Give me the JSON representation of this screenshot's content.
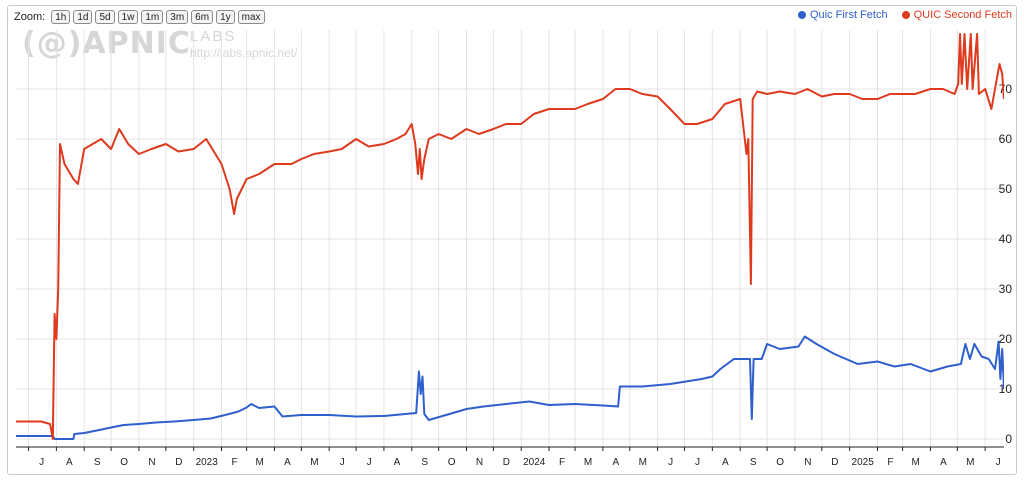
{
  "zoom": {
    "label": "Zoom:",
    "buttons": [
      "1h",
      "1d",
      "5d",
      "1w",
      "1m",
      "3m",
      "6m",
      "1y",
      "max"
    ]
  },
  "watermark": {
    "logo": "(@)APNIC",
    "labs": "LABS",
    "url": "http://labs.apnic.net/"
  },
  "colors": {
    "first_fetch": "#2f5fcc",
    "second_fetch": "#dd3a1e",
    "grid": "#e4e4e4",
    "axis": "#222222"
  },
  "chart_data": {
    "type": "line",
    "title": "",
    "xlabel": "",
    "ylabel": "",
    "ylim": [
      0,
      70
    ],
    "yticks": [
      0,
      10,
      20,
      30,
      40,
      50,
      60,
      70
    ],
    "y_axis_side": "right",
    "grid": true,
    "legend_position": "top-right",
    "x_range": [
      "2022-06-17",
      "2025-06-22"
    ],
    "x_tick_labels": [
      "J",
      "A",
      "S",
      "O",
      "N",
      "D",
      "2023",
      "F",
      "M",
      "A",
      "M",
      "J",
      "J",
      "A",
      "S",
      "O",
      "N",
      "D",
      "2024",
      "F",
      "M",
      "A",
      "M",
      "J",
      "J",
      "A",
      "S",
      "O",
      "N",
      "D",
      "2025",
      "F",
      "M",
      "A",
      "M",
      "J"
    ],
    "series": [
      {
        "name": "Quic First Fetch",
        "color": "#2f5fcc",
        "points": [
          [
            "2022-06-17",
            0.6
          ],
          [
            "2022-07-10",
            0.6
          ],
          [
            "2022-07-28",
            0.6
          ],
          [
            "2022-07-30",
            0
          ],
          [
            "2022-08-20",
            0
          ],
          [
            "2022-08-21",
            1
          ],
          [
            "2022-09-01",
            1.2
          ],
          [
            "2022-09-15",
            1.7
          ],
          [
            "2022-10-01",
            2.3
          ],
          [
            "2022-10-15",
            2.8
          ],
          [
            "2022-11-01",
            3
          ],
          [
            "2022-11-20",
            3.3
          ],
          [
            "2022-12-10",
            3.5
          ],
          [
            "2023-01-01",
            3.8
          ],
          [
            "2023-01-20",
            4.1
          ],
          [
            "2023-02-05",
            4.8
          ],
          [
            "2023-02-20",
            5.5
          ],
          [
            "2023-03-01",
            6.3
          ],
          [
            "2023-03-06",
            7
          ],
          [
            "2023-03-15",
            6.2
          ],
          [
            "2023-04-01",
            6.5
          ],
          [
            "2023-04-10",
            4.5
          ],
          [
            "2023-05-01",
            4.8
          ],
          [
            "2023-06-01",
            4.8
          ],
          [
            "2023-07-01",
            4.5
          ],
          [
            "2023-08-01",
            4.6
          ],
          [
            "2023-08-25",
            5
          ],
          [
            "2023-09-06",
            5.2
          ],
          [
            "2023-09-09",
            13.5
          ],
          [
            "2023-09-11",
            9
          ],
          [
            "2023-09-13",
            12.5
          ],
          [
            "2023-09-15",
            5
          ],
          [
            "2023-09-20",
            3.8
          ],
          [
            "2023-10-15",
            5.1
          ],
          [
            "2023-11-01",
            6
          ],
          [
            "2023-11-20",
            6.5
          ],
          [
            "2023-12-15",
            7
          ],
          [
            "2024-01-10",
            7.5
          ],
          [
            "2024-02-01",
            6.8
          ],
          [
            "2024-03-01",
            7
          ],
          [
            "2024-04-01",
            6.7
          ],
          [
            "2024-04-18",
            6.5
          ],
          [
            "2024-04-20",
            10.5
          ],
          [
            "2024-05-15",
            10.5
          ],
          [
            "2024-06-15",
            11
          ],
          [
            "2024-07-20",
            12
          ],
          [
            "2024-08-01",
            12.5
          ],
          [
            "2024-08-10",
            14
          ],
          [
            "2024-08-25",
            16
          ],
          [
            "2024-09-12",
            16
          ],
          [
            "2024-09-14",
            4
          ],
          [
            "2024-09-16",
            16
          ],
          [
            "2024-09-25",
            16
          ],
          [
            "2024-10-01",
            19
          ],
          [
            "2024-10-15",
            18
          ],
          [
            "2024-11-05",
            18.5
          ],
          [
            "2024-11-12",
            20.5
          ],
          [
            "2024-11-25",
            19
          ],
          [
            "2024-12-15",
            17
          ],
          [
            "2025-01-10",
            15
          ],
          [
            "2025-02-01",
            15.5
          ],
          [
            "2025-02-20",
            14.5
          ],
          [
            "2025-03-10",
            15
          ],
          [
            "2025-04-01",
            13.5
          ],
          [
            "2025-04-20",
            14.5
          ],
          [
            "2025-05-05",
            15
          ],
          [
            "2025-05-10",
            19
          ],
          [
            "2025-05-15",
            16
          ],
          [
            "2025-05-20",
            19
          ],
          [
            "2025-05-28",
            16.5
          ],
          [
            "2025-06-05",
            16
          ],
          [
            "2025-06-12",
            14
          ],
          [
            "2025-06-16",
            19.5
          ],
          [
            "2025-06-18",
            12
          ],
          [
            "2025-06-20",
            18
          ],
          [
            "2025-06-22",
            10
          ]
        ]
      },
      {
        "name": "QUIC Second Fetch",
        "color": "#dd3a1e",
        "points": [
          [
            "2022-06-17",
            3.5
          ],
          [
            "2022-07-15",
            3.5
          ],
          [
            "2022-07-25",
            3
          ],
          [
            "2022-07-28",
            0
          ],
          [
            "2022-07-30",
            25
          ],
          [
            "2022-08-01",
            20
          ],
          [
            "2022-08-03",
            30
          ],
          [
            "2022-08-05",
            59
          ],
          [
            "2022-08-10",
            55
          ],
          [
            "2022-08-20",
            52
          ],
          [
            "2022-08-25",
            51
          ],
          [
            "2022-09-01",
            58
          ],
          [
            "2022-09-20",
            60
          ],
          [
            "2022-10-01",
            58
          ],
          [
            "2022-10-10",
            62
          ],
          [
            "2022-10-20",
            59
          ],
          [
            "2022-11-01",
            57
          ],
          [
            "2022-11-15",
            58
          ],
          [
            "2022-12-01",
            59
          ],
          [
            "2022-12-15",
            57.5
          ],
          [
            "2023-01-01",
            58
          ],
          [
            "2023-01-15",
            60
          ],
          [
            "2023-02-01",
            55
          ],
          [
            "2023-02-10",
            50
          ],
          [
            "2023-02-15",
            45
          ],
          [
            "2023-02-18",
            48
          ],
          [
            "2023-03-01",
            52
          ],
          [
            "2023-03-15",
            53
          ],
          [
            "2023-04-01",
            55
          ],
          [
            "2023-04-20",
            55
          ],
          [
            "2023-05-01",
            56
          ],
          [
            "2023-05-15",
            57
          ],
          [
            "2023-06-01",
            57.5
          ],
          [
            "2023-06-15",
            58
          ],
          [
            "2023-07-01",
            60
          ],
          [
            "2023-07-15",
            58.5
          ],
          [
            "2023-08-01",
            59
          ],
          [
            "2023-08-15",
            60
          ],
          [
            "2023-08-25",
            61
          ],
          [
            "2023-09-01",
            63
          ],
          [
            "2023-09-05",
            59
          ],
          [
            "2023-09-08",
            53
          ],
          [
            "2023-09-10",
            58
          ],
          [
            "2023-09-12",
            52
          ],
          [
            "2023-09-15",
            56
          ],
          [
            "2023-09-20",
            60
          ],
          [
            "2023-10-01",
            61
          ],
          [
            "2023-10-15",
            60
          ],
          [
            "2023-11-01",
            62
          ],
          [
            "2023-11-15",
            61
          ],
          [
            "2023-12-01",
            62
          ],
          [
            "2023-12-15",
            63
          ],
          [
            "2024-01-01",
            63
          ],
          [
            "2024-01-15",
            65
          ],
          [
            "2024-02-01",
            66
          ],
          [
            "2024-03-01",
            66
          ],
          [
            "2024-03-15",
            67
          ],
          [
            "2024-04-01",
            68
          ],
          [
            "2024-04-15",
            70
          ],
          [
            "2024-05-01",
            70
          ],
          [
            "2024-05-15",
            69
          ],
          [
            "2024-06-01",
            68.5
          ],
          [
            "2024-06-15",
            66
          ],
          [
            "2024-07-01",
            63
          ],
          [
            "2024-07-15",
            63
          ],
          [
            "2024-08-01",
            64
          ],
          [
            "2024-08-15",
            67
          ],
          [
            "2024-09-01",
            68
          ],
          [
            "2024-09-08",
            57
          ],
          [
            "2024-09-10",
            60
          ],
          [
            "2024-09-13",
            31
          ],
          [
            "2024-09-15",
            68
          ],
          [
            "2024-09-20",
            69.5
          ],
          [
            "2024-10-01",
            69
          ],
          [
            "2024-10-15",
            69.5
          ],
          [
            "2024-11-01",
            69
          ],
          [
            "2024-11-15",
            70
          ],
          [
            "2024-12-01",
            68.5
          ],
          [
            "2024-12-15",
            69
          ],
          [
            "2025-01-01",
            69
          ],
          [
            "2025-01-15",
            68
          ],
          [
            "2025-02-01",
            68
          ],
          [
            "2025-02-15",
            69
          ],
          [
            "2025-03-01",
            69
          ],
          [
            "2025-03-15",
            69
          ],
          [
            "2025-04-01",
            70
          ],
          [
            "2025-04-15",
            70
          ],
          [
            "2025-04-28",
            69
          ],
          [
            "2025-05-02",
            71
          ],
          [
            "2025-05-04",
            81
          ],
          [
            "2025-05-06",
            71
          ],
          [
            "2025-05-09",
            81
          ],
          [
            "2025-05-12",
            70
          ],
          [
            "2025-05-16",
            81
          ],
          [
            "2025-05-18",
            70
          ],
          [
            "2025-05-23",
            81
          ],
          [
            "2025-05-25",
            69
          ],
          [
            "2025-06-01",
            70
          ],
          [
            "2025-06-08",
            66
          ],
          [
            "2025-06-12",
            70
          ],
          [
            "2025-06-17",
            75
          ],
          [
            "2025-06-20",
            73
          ],
          [
            "2025-06-22",
            68
          ]
        ]
      }
    ]
  }
}
